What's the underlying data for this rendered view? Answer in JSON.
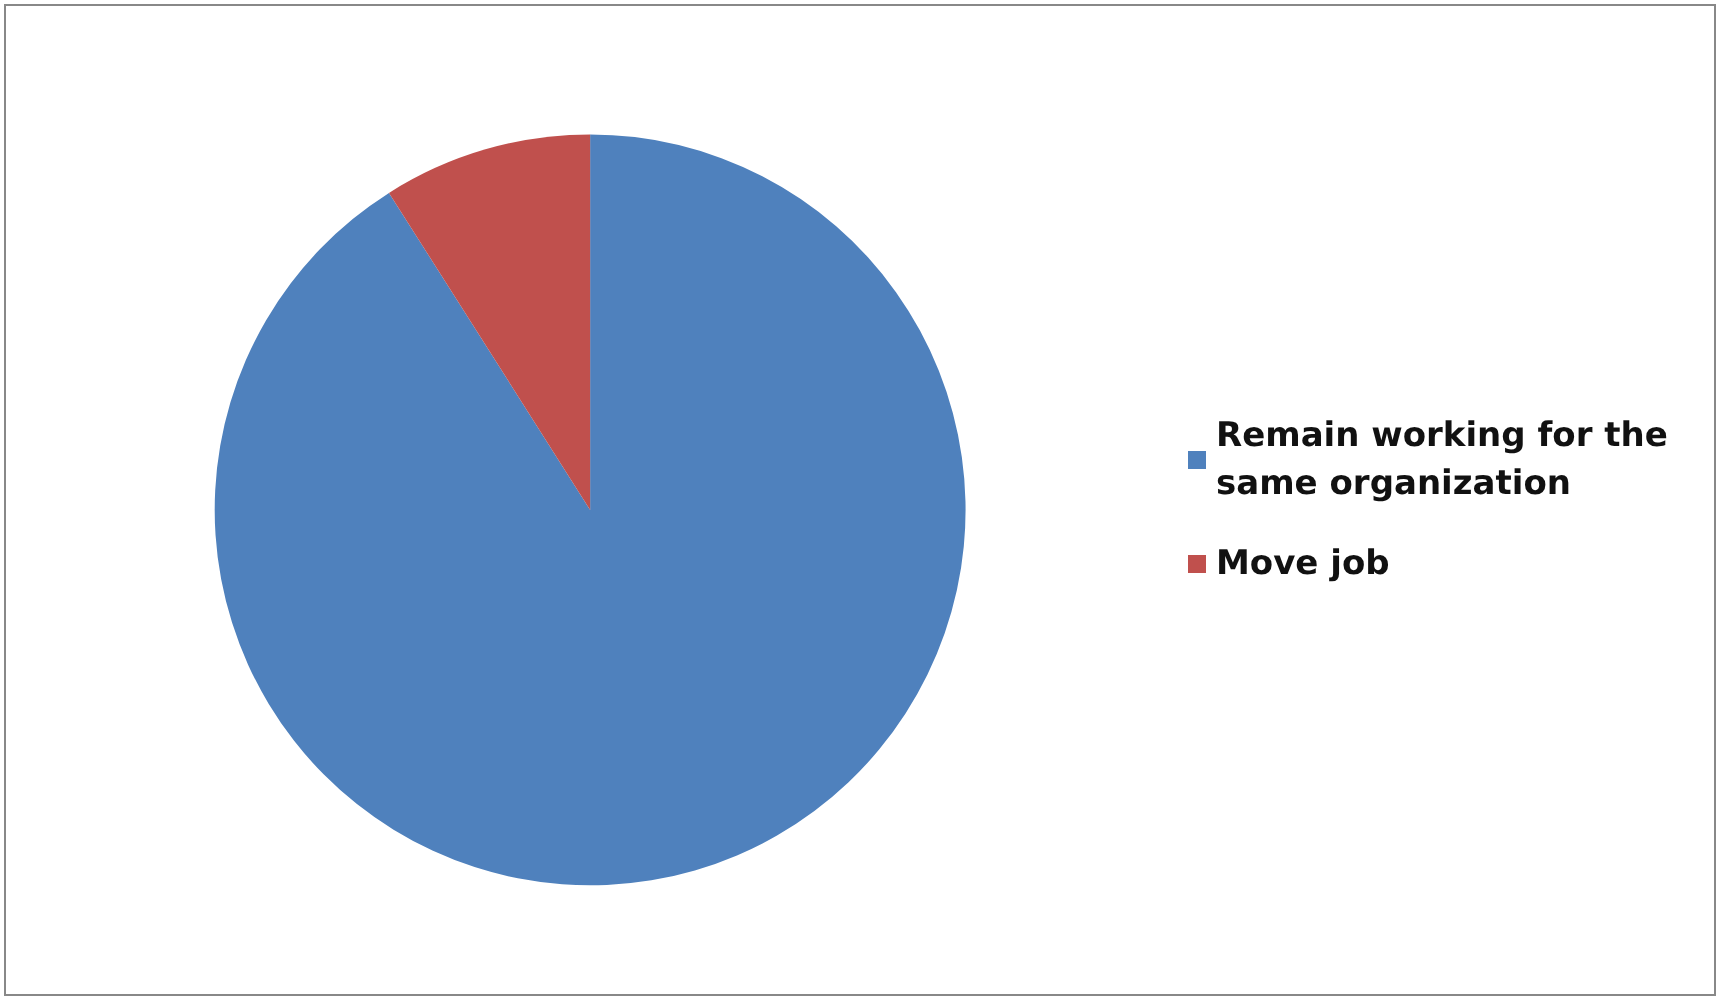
{
  "chart_data": {
    "type": "pie",
    "categories": [
      "Remain working for the same organization",
      "Move job"
    ],
    "values": [
      91,
      9
    ],
    "colors": [
      "#4f81bd",
      "#c0504d"
    ],
    "legend": "right"
  }
}
